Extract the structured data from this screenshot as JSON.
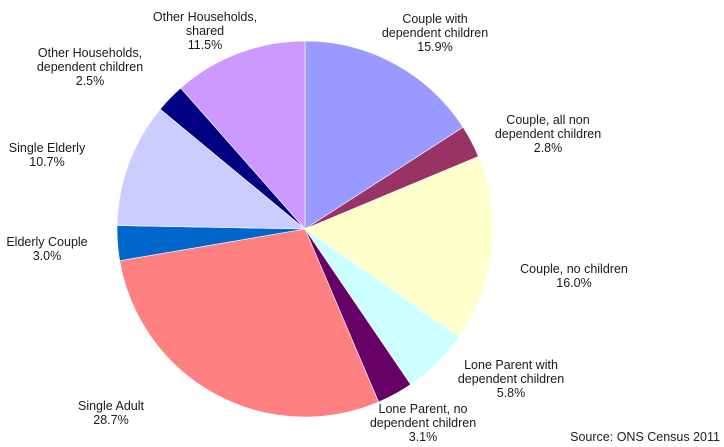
{
  "chart_data": {
    "type": "pie",
    "title": "",
    "start": "12 o'clock, clockwise",
    "slices": [
      {
        "name": "Couple with dependent children",
        "lines": [
          "Couple with",
          "dependent children"
        ],
        "pct_label": "15.9%",
        "value": 15.9,
        "color": "#9999ff"
      },
      {
        "name": "Couple, all non dependent children",
        "lines": [
          "Couple, all non",
          "dependent children"
        ],
        "pct_label": "2.8%",
        "value": 2.8,
        "color": "#993366"
      },
      {
        "name": "Couple, no children",
        "lines": [
          "Couple, no children"
        ],
        "pct_label": "16.0%",
        "value": 16.0,
        "color": "#ffffcc"
      },
      {
        "name": "Lone Parent with dependent children",
        "lines": [
          "Lone Parent with",
          "dependent children"
        ],
        "pct_label": "5.8%",
        "value": 5.8,
        "color": "#ccffff"
      },
      {
        "name": "Lone Parent, no dependent children",
        "lines": [
          "Lone Parent, no",
          "dependent children"
        ],
        "pct_label": "3.1%",
        "value": 3.1,
        "color": "#660066"
      },
      {
        "name": "Single Adult",
        "lines": [
          "Single Adult"
        ],
        "pct_label": "28.7%",
        "value": 28.7,
        "color": "#ff8080"
      },
      {
        "name": "Elderly Couple",
        "lines": [
          "Elderly Couple"
        ],
        "pct_label": "3.0%",
        "value": 3.0,
        "color": "#0066cc"
      },
      {
        "name": "Single Elderly",
        "lines": [
          "Single Elderly"
        ],
        "pct_label": "10.7%",
        "value": 10.7,
        "color": "#ccccff"
      },
      {
        "name": "Other Households, dependent children",
        "lines": [
          "Other Households,",
          "dependent children"
        ],
        "pct_label": "2.5%",
        "value": 2.5,
        "color": "#000080"
      },
      {
        "name": "Other Households, shared",
        "lines": [
          "Other Households,",
          "shared"
        ],
        "pct_label": "11.5%",
        "value": 11.5,
        "color": "#cc99ff"
      }
    ]
  },
  "source": "Source: ONS Census 2011"
}
